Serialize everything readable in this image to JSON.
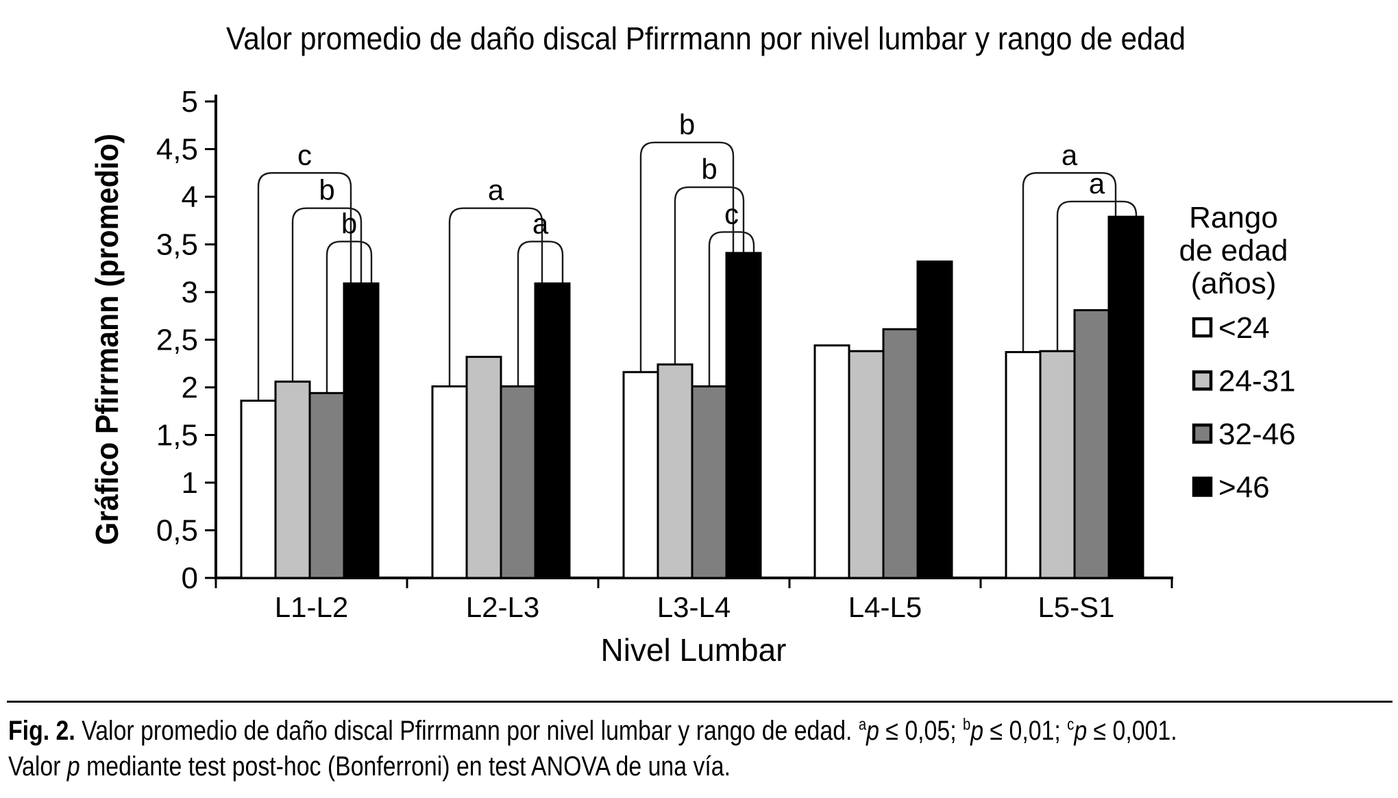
{
  "chart_data": {
    "type": "bar",
    "title": "Valor promedio de daño discal Pfirrmann por nivel lumbar y rango de edad",
    "xlabel": "Nivel Lumbar",
    "ylabel": "Gráfico Pfirrmann (promedio)",
    "ylim": [
      0,
      5
    ],
    "ytick_step": 0.5,
    "ytick_labels": [
      "0",
      "0,5",
      "1",
      "1,5",
      "2",
      "2,5",
      "3",
      "3,5",
      "4",
      "4,5",
      "5"
    ],
    "grid": "off",
    "categories": [
      "L1-L2",
      "L2-L3",
      "L3-L4",
      "L4-L5",
      "L5-S1"
    ],
    "series": [
      {
        "name": "<24",
        "fill": "#ffffff",
        "values": [
          1.86,
          2.01,
          2.16,
          2.44,
          2.37
        ]
      },
      {
        "name": "24-31",
        "fill": "#c2c2c2",
        "values": [
          2.06,
          2.32,
          2.24,
          2.38,
          2.38
        ]
      },
      {
        "name": "32-46",
        "fill": "#7f7f7f",
        "values": [
          1.94,
          2.01,
          2.01,
          2.61,
          2.81
        ]
      },
      {
        "name": ">46",
        "fill": "#000000",
        "values": [
          3.09,
          3.09,
          3.41,
          3.32,
          3.79
        ]
      }
    ],
    "brackets": [
      {
        "category_index": 0,
        "from": 0,
        "to": 3,
        "label": "c",
        "y": 4.25
      },
      {
        "category_index": 0,
        "from": 1,
        "to": 3,
        "label": "b",
        "y": 3.88
      },
      {
        "category_index": 0,
        "from": 2,
        "to": 3,
        "label": "b",
        "y": 3.53
      },
      {
        "category_index": 1,
        "from": 0,
        "to": 3,
        "label": "a",
        "y": 3.88
      },
      {
        "category_index": 1,
        "from": 2,
        "to": 3,
        "label": "a",
        "y": 3.53
      },
      {
        "category_index": 2,
        "from": 0,
        "to": 3,
        "label": "b",
        "y": 4.57
      },
      {
        "category_index": 2,
        "from": 1,
        "to": 3,
        "label": "b",
        "y": 4.1
      },
      {
        "category_index": 2,
        "from": 2,
        "to": 3,
        "label": "c",
        "y": 3.63
      },
      {
        "category_index": 4,
        "from": 0,
        "to": 3,
        "label": "a",
        "y": 4.25
      },
      {
        "category_index": 4,
        "from": 1,
        "to": 3,
        "label": "a",
        "y": 3.95
      }
    ],
    "legend": {
      "title_lines": [
        "Rango",
        "de edad",
        "(años)"
      ],
      "position": "right",
      "items": [
        "<24",
        "24-31",
        "32-46",
        ">46"
      ]
    },
    "colors": {
      "axis": "#000000",
      "bar_border": "#000000",
      "bracket": "#1a1a1a"
    }
  },
  "caption": {
    "segments": [
      {
        "text": "Fig. 2.",
        "bold": true
      },
      {
        "text": " Valor promedio de daño discal Pfirrmann por nivel lumbar y rango de edad. "
      },
      {
        "text": "a",
        "sup": true
      },
      {
        "text": "p",
        "italic": true
      },
      {
        "text": " ≤ 0,05; "
      },
      {
        "text": "b",
        "sup": true
      },
      {
        "text": "p",
        "italic": true
      },
      {
        "text": " ≤ 0,01; "
      },
      {
        "text": "c",
        "sup": true
      },
      {
        "text": "p",
        "italic": true
      },
      {
        "text": " ≤ 0,001."
      },
      {
        "br": true
      },
      {
        "text": "Valor "
      },
      {
        "text": "p",
        "italic": true
      },
      {
        "text": " mediante test post-hoc (Bonferroni) en test ANOVA de una vía."
      }
    ]
  }
}
